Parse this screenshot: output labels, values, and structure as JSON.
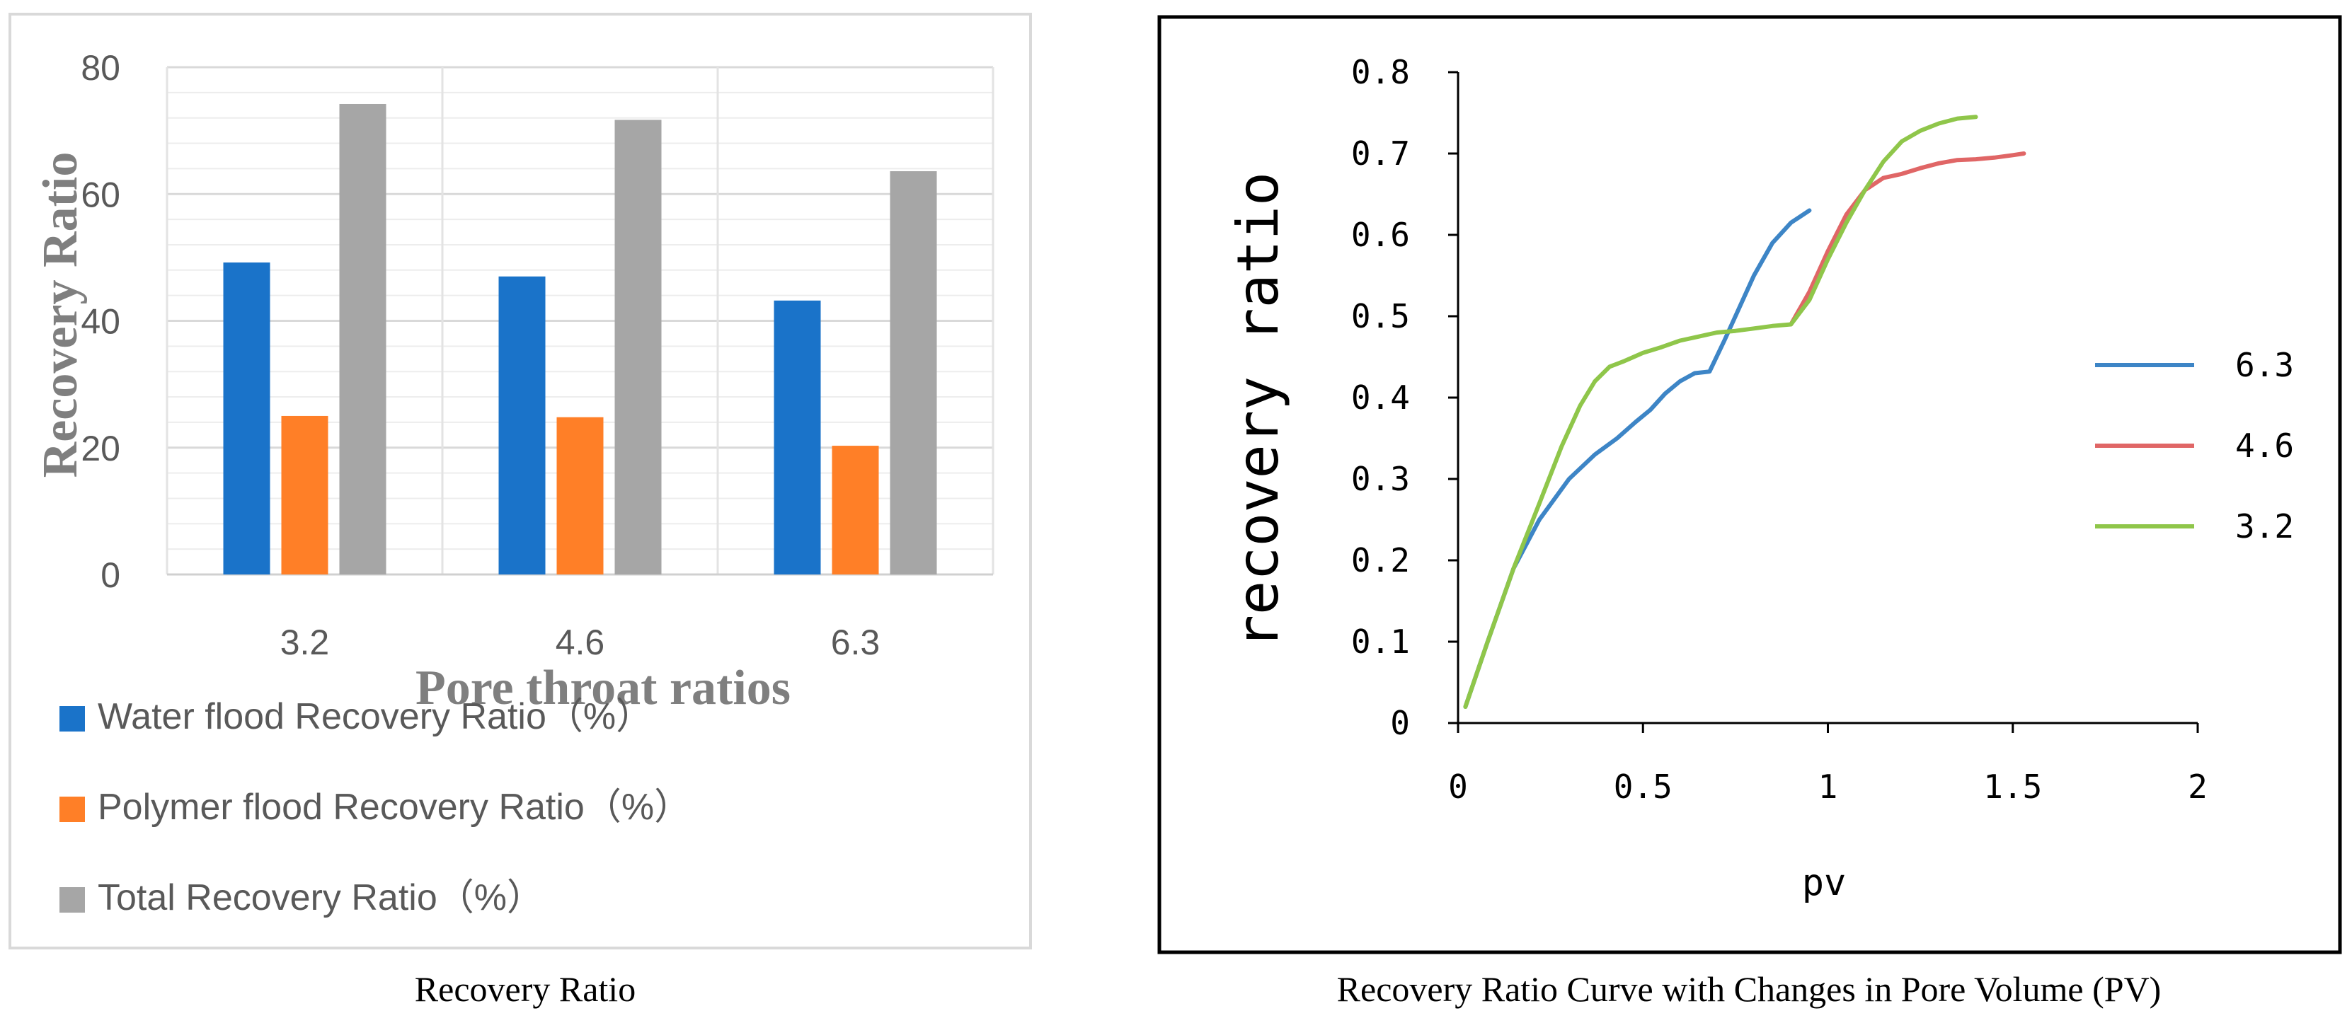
{
  "chart_data": [
    {
      "type": "bar",
      "caption": "Recovery Ratio",
      "xlabel": "Pore throat ratios",
      "ylabel": "Recovery Ratio",
      "categories": [
        "3.2",
        "4.6",
        "6.3"
      ],
      "ylim": [
        0,
        80
      ],
      "yticks": [
        "0",
        "20",
        "40",
        "60",
        "80"
      ],
      "grid": true,
      "legend_position": "bottom",
      "series": [
        {
          "name": "Water flood Recovery Ratio（%）",
          "color": "#1a73c9",
          "values": [
            49.2,
            47.0,
            43.2
          ]
        },
        {
          "name": "Polymer flood Recovery Ratio（%）",
          "color": "#ff7f27",
          "values": [
            25.0,
            24.8,
            20.3
          ]
        },
        {
          "name": "Total Recovery Ratio（%）",
          "color": "#a6a6a6",
          "values": [
            74.2,
            71.7,
            63.6
          ]
        }
      ]
    },
    {
      "type": "line",
      "caption": "Recovery Ratio Curve with Changes in Pore Volume (PV)",
      "xlabel": "pv",
      "ylabel": "recovery ratio",
      "xlim": [
        0,
        2
      ],
      "ylim": [
        0,
        0.8
      ],
      "xticks": [
        "0",
        "0.5",
        "1",
        "1.5",
        "2"
      ],
      "yticks": [
        "0",
        "0.1",
        "0.2",
        "0.3",
        "0.4",
        "0.5",
        "0.6",
        "0.7",
        "0.8"
      ],
      "legend_position": "right",
      "series": [
        {
          "name": "6.3",
          "color": "#3d85c6",
          "x": [
            0.02,
            0.08,
            0.15,
            0.22,
            0.3,
            0.37,
            0.43,
            0.48,
            0.52,
            0.56,
            0.6,
            0.64,
            0.68,
            0.72,
            0.76,
            0.8,
            0.85,
            0.9,
            0.95
          ],
          "y": [
            0.02,
            0.1,
            0.19,
            0.25,
            0.3,
            0.33,
            0.35,
            0.37,
            0.385,
            0.405,
            0.42,
            0.43,
            0.432,
            0.47,
            0.51,
            0.55,
            0.59,
            0.615,
            0.63
          ]
        },
        {
          "name": "4.6",
          "color": "#e06666",
          "x": [
            0.9,
            0.95,
            1.0,
            1.05,
            1.1,
            1.15,
            1.2,
            1.25,
            1.3,
            1.35,
            1.4,
            1.45,
            1.5,
            1.53
          ],
          "y": [
            0.49,
            0.53,
            0.58,
            0.625,
            0.655,
            0.67,
            0.675,
            0.682,
            0.688,
            0.692,
            0.693,
            0.695,
            0.698,
            0.7
          ]
        },
        {
          "name": "3.2",
          "color": "#8fc64a",
          "x": [
            0.02,
            0.08,
            0.15,
            0.22,
            0.28,
            0.33,
            0.37,
            0.41,
            0.45,
            0.5,
            0.55,
            0.6,
            0.65,
            0.7,
            0.75,
            0.8,
            0.85,
            0.9,
            0.95,
            1.0,
            1.05,
            1.1,
            1.15,
            1.2,
            1.25,
            1.3,
            1.35,
            1.4
          ],
          "y": [
            0.02,
            0.1,
            0.19,
            0.27,
            0.34,
            0.39,
            0.42,
            0.438,
            0.445,
            0.455,
            0.462,
            0.47,
            0.475,
            0.48,
            0.482,
            0.485,
            0.488,
            0.49,
            0.52,
            0.57,
            0.615,
            0.655,
            0.69,
            0.715,
            0.728,
            0.737,
            0.743,
            0.745
          ]
        }
      ]
    }
  ]
}
